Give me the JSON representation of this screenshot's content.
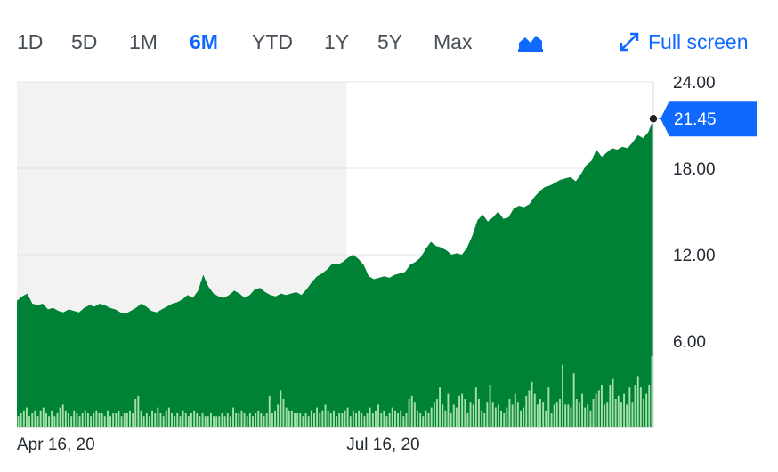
{
  "toolbar": {
    "ranges": [
      "1D",
      "5D",
      "1M",
      "6M",
      "YTD",
      "1Y",
      "5Y",
      "Max"
    ],
    "active_range": "6M",
    "chart_type_icon": "mountain-chart-icon",
    "fullscreen_icon": "expand-arrows-icon",
    "fullscreen_label": "Full screen"
  },
  "colors": {
    "accent": "#0f69ff",
    "area": "#008236",
    "volume": "#a7dfa8",
    "prepost_bg": "#f2f2f2"
  },
  "chart_data": {
    "type": "area",
    "title": "",
    "xlabel": "",
    "ylabel": "",
    "ylim": [
      0,
      24
    ],
    "y_ticks": [
      "24.00",
      "18.00",
      "12.00",
      "6.00"
    ],
    "y_tick_values": [
      24,
      18,
      12,
      6
    ],
    "x_tick_labels": [
      "Apr 16, 20",
      "Jul 16, 20"
    ],
    "x_tick_index": [
      0,
      63
    ],
    "last_price": "21.45",
    "last_value": 21.45,
    "grid": true,
    "shaded_period": "Apr 16, 20 – Jul 16, 20",
    "series": [
      {
        "values": [
          8.8,
          9.1,
          9.3,
          8.6,
          8.5,
          8.6,
          8.2,
          8.3,
          8.1,
          8.0,
          8.2,
          8.1,
          8.0,
          8.3,
          8.5,
          8.4,
          8.6,
          8.5,
          8.3,
          8.2,
          8.0,
          7.9,
          8.1,
          8.3,
          8.6,
          8.4,
          8.1,
          8.0,
          8.2,
          8.4,
          8.6,
          8.7,
          8.9,
          9.2,
          9.0,
          9.5,
          10.6,
          9.8,
          9.3,
          9.1,
          9.0,
          9.2,
          9.5,
          9.3,
          9.0,
          9.2,
          9.6,
          9.7,
          9.4,
          9.2,
          9.1,
          9.3,
          9.2,
          9.3,
          9.4,
          9.2,
          9.6,
          10.1,
          10.5,
          10.7,
          11.0,
          11.4,
          11.3,
          11.5,
          11.8,
          12.0,
          11.7,
          11.3,
          10.5,
          10.3,
          10.4,
          10.5,
          10.4,
          10.6,
          10.7,
          10.8,
          11.3,
          11.5,
          11.8,
          12.4,
          12.9,
          12.6,
          12.5,
          12.3,
          12.0,
          12.1,
          12.0,
          12.5,
          13.3,
          14.4,
          14.8,
          14.3,
          14.6,
          15.0,
          14.5,
          14.6,
          15.2,
          15.4,
          15.3,
          15.5,
          16.0,
          16.4,
          16.7,
          16.8,
          17.0,
          17.2,
          17.3,
          17.4,
          17.1,
          17.6,
          18.2,
          18.5,
          19.3,
          18.8,
          19.1,
          19.4,
          19.3,
          19.5,
          19.4,
          19.8,
          20.3,
          20.1,
          20.5,
          21.45
        ]
      }
    ],
    "volume": [
      4,
      5,
      6,
      7,
      4,
      5,
      6,
      4,
      6,
      7,
      5,
      4,
      6,
      4,
      5,
      7,
      8,
      6,
      5,
      4,
      6,
      5,
      4,
      5,
      6,
      5,
      4,
      5,
      6,
      5,
      5,
      4,
      6,
      4,
      5,
      5,
      6,
      4,
      5,
      5,
      6,
      5,
      10,
      11,
      6,
      4,
      5,
      4,
      6,
      5,
      7,
      5,
      4,
      6,
      7,
      5,
      4,
      5,
      4,
      6,
      5,
      4,
      5,
      6,
      5,
      4,
      5,
      4,
      4,
      5,
      4,
      4,
      4,
      5,
      4,
      5,
      4,
      7,
      5,
      5,
      6,
      5,
      4,
      5,
      4,
      5,
      6,
      5,
      4,
      5,
      11,
      5,
      6,
      8,
      13,
      10,
      7,
      6,
      6,
      5,
      5,
      5,
      4,
      5,
      4,
      6,
      5,
      7,
      5,
      6,
      8,
      6,
      5,
      6,
      4,
      5,
      5,
      6,
      7,
      4,
      6,
      5,
      6,
      5,
      4,
      5,
      7,
      5,
      6,
      8,
      5,
      6,
      4,
      5,
      7,
      6,
      5,
      6,
      4,
      5,
      10,
      11,
      9,
      6,
      5,
      4,
      6,
      5,
      7,
      9,
      10,
      14,
      8,
      6,
      12,
      5,
      8,
      7,
      11,
      12,
      10,
      5,
      9,
      8,
      14,
      10,
      6,
      5,
      9,
      15,
      9,
      7,
      8,
      6,
      5,
      7,
      10,
      8,
      12,
      9,
      6,
      7,
      11,
      13,
      16,
      12,
      8,
      10,
      9,
      6,
      14,
      5,
      8,
      9,
      10,
      22,
      8,
      8,
      7,
      19,
      10,
      9,
      12,
      7,
      8,
      6,
      10,
      12,
      13,
      15,
      8,
      9,
      15,
      17,
      10,
      11,
      9,
      12,
      8,
      14,
      9,
      15,
      18,
      14,
      10,
      12,
      15,
      25
    ]
  }
}
